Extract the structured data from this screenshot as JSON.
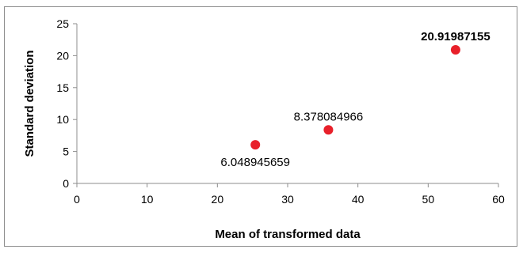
{
  "chart_data": {
    "type": "scatter",
    "xlabel": "Mean of transformed data",
    "ylabel": "Standard deviation",
    "xlim": [
      0,
      60
    ],
    "ylim": [
      0,
      25
    ],
    "x_ticks": [
      0,
      10,
      20,
      30,
      40,
      50,
      60
    ],
    "y_ticks": [
      0,
      5,
      10,
      15,
      20,
      25
    ],
    "grid": false,
    "marker_color": "#e8202a",
    "points": [
      {
        "x": 25.4,
        "y": 6.048945659,
        "label": "6.048945659",
        "label_pos": "below",
        "bold": false
      },
      {
        "x": 35.8,
        "y": 8.378084966,
        "label": "8.378084966",
        "label_pos": "above",
        "bold": false
      },
      {
        "x": 53.9,
        "y": 20.91987155,
        "label": "20.91987155",
        "label_pos": "above",
        "bold": true
      }
    ]
  }
}
